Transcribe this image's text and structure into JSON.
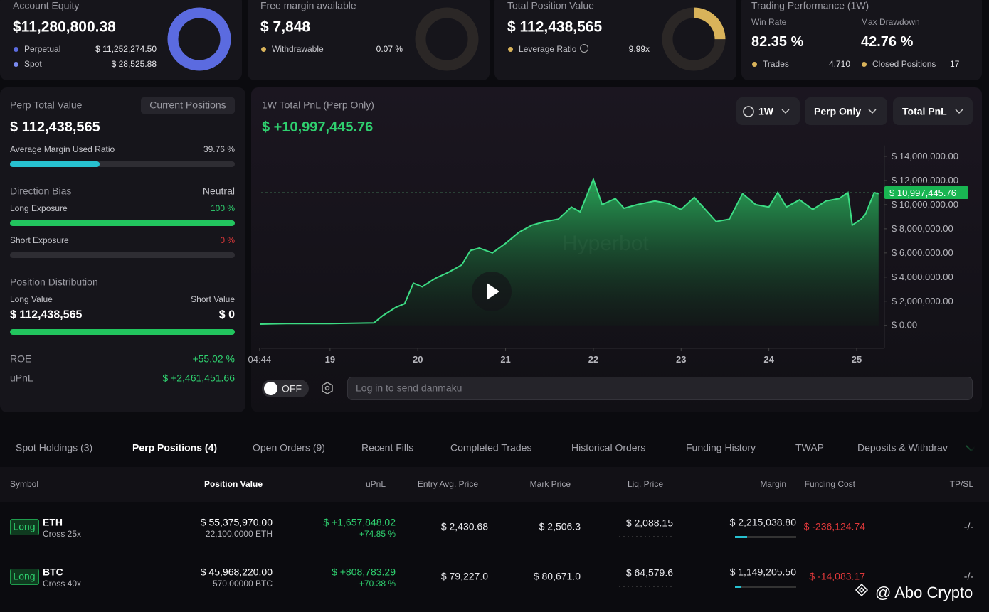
{
  "cards": [
    {
      "title": "Account Equity",
      "value": "$11,280,800.38",
      "gauge": 100,
      "color": "#5b6be0",
      "rows": [
        {
          "label": "Perpetual",
          "value": "$ 11,252,274.50"
        },
        {
          "label": "Spot",
          "value": "$ 28,525.88"
        }
      ]
    },
    {
      "title": "Free margin available",
      "value": "$ 7,848",
      "gauge": 0,
      "color": "#d9b35a",
      "rows": [
        {
          "label": "Withdrawable",
          "value": "0.07 %"
        }
      ]
    },
    {
      "title": "Total Position Value",
      "value": "$ 112,438,565",
      "gauge": 25,
      "color": "#d9b35a",
      "rows": [
        {
          "label": "Leverage Ratio",
          "value": "9.99x"
        }
      ]
    }
  ],
  "performance": {
    "title": "Trading Performance (1W)",
    "win_rate_label": "Win Rate",
    "win_rate": "82.35 %",
    "max_drawdown_label": "Max Drawdown",
    "max_drawdown": "42.76 %",
    "trades_label": "Trades",
    "trades": "4,710",
    "closed_label": "Closed Positions",
    "closed": "17"
  },
  "perp": {
    "title": "Perp Total Value",
    "button": "Current Positions",
    "value": "$ 112,438,565",
    "margin_ratio_label": "Average Margin Used Ratio",
    "margin_ratio": {
      "value": 39.76,
      "label": "39.76 %"
    },
    "bias_label": "Direction Bias",
    "bias": "Neutral",
    "long_label": "Long Exposure",
    "long": {
      "value": 100,
      "label": "100 %"
    },
    "short_label": "Short Exposure",
    "short": {
      "value": 0,
      "label": "0 %"
    },
    "distribution_label": "Position Distribution",
    "long_value_label": "Long Value",
    "short_value_label": "Short Value",
    "long_value": "$ 112,438,565",
    "short_value": "$ 0",
    "roe_label": "ROE",
    "roe": "+55.02 %",
    "upnl_label": "uPnL",
    "upnl": "$ +2,461,451.66"
  },
  "pnl_chart": {
    "type": "area",
    "title": "1W Total PnL (Perp Only)",
    "total": "$ +10,997,445.76",
    "controls": [
      "1W",
      "Perp Only",
      "Total PnL"
    ],
    "watermark": "Hyperbot",
    "color": "#3ddc84",
    "x": [
      18.2,
      18.5,
      19.0,
      19.5,
      19.6,
      19.75,
      19.85,
      19.95,
      20.05,
      20.2,
      20.35,
      20.5,
      20.6,
      20.7,
      20.85,
      21.0,
      21.15,
      21.3,
      21.45,
      21.6,
      21.75,
      21.85,
      22.0,
      22.1,
      22.25,
      22.35,
      22.5,
      22.7,
      22.85,
      23.0,
      23.15,
      23.3,
      23.4,
      23.55,
      23.7,
      23.85,
      24.0,
      24.1,
      24.2,
      24.35,
      24.5,
      24.65,
      24.8,
      24.9,
      24.95,
      25.05,
      25.1,
      25.2,
      25.25
    ],
    "values": [
      100000,
      150000,
      150000,
      200000,
      800000,
      1500000,
      1800000,
      3500000,
      3200000,
      3900000,
      4400000,
      5000000,
      6200000,
      6400000,
      6000000,
      6800000,
      7700000,
      8300000,
      8600000,
      8800000,
      9800000,
      9400000,
      12100000,
      10000000,
      10500000,
      9700000,
      10000000,
      10300000,
      10100000,
      9600000,
      10600000,
      9400000,
      8600000,
      8800000,
      10900000,
      10000000,
      9800000,
      11000000,
      9800000,
      10400000,
      9600000,
      10300000,
      10500000,
      11000000,
      8300000,
      8800000,
      9200000,
      11000000,
      10900000
    ],
    "current": {
      "value": 10997445.76,
      "label": "$ 10,997,445.76"
    },
    "xlim": [
      18.15,
      25.3
    ],
    "ylim": [
      -1900000,
      14900000
    ],
    "xticks": [
      {
        "value": 18.197,
        "label": "04:44"
      },
      19,
      20,
      21,
      22,
      23,
      24,
      25
    ],
    "yticks": [
      {
        "value": 0,
        "label": "$ 0.00"
      },
      {
        "value": 2000000,
        "label": "$ 2,000,000.00"
      },
      {
        "value": 4000000,
        "label": "$ 4,000,000.00"
      },
      {
        "value": 6000000,
        "label": "$ 6,000,000.00"
      },
      {
        "value": 8000000,
        "label": "$ 8,000,000.00"
      },
      {
        "value": 10000000,
        "label": "$ 10,000,000.00"
      },
      {
        "value": 12000000,
        "label": "$ 12,000,000.00"
      },
      {
        "value": 14000000,
        "label": "$ 14,000,000.00"
      }
    ],
    "grid": false
  },
  "danmaku": {
    "toggle": "OFF",
    "placeholder": "Log in to send danmaku"
  },
  "positions": {
    "tabs": [
      "Spot Holdings (3)",
      "Perp Positions (4)",
      "Open Orders (9)",
      "Recent Fills",
      "Completed Trades",
      "Historical Orders",
      "Funding History",
      "TWAP",
      "Deposits & Withdrav"
    ],
    "columns": [
      "Symbol",
      "Position Value",
      "uPnL",
      "Entry Avg. Price",
      "Mark Price",
      "Liq. Price",
      "Margin",
      "Funding Cost",
      "TP/SL"
    ],
    "rows": [
      {
        "side": "Long",
        "symbol": "ETH",
        "margin_mode": "Cross 25x",
        "position_value": "$ 55,375,970.00",
        "size": "22,100.0000 ETH",
        "upnl": "$ +1,657,848.02",
        "upnl_pct": "+74.85 %",
        "entry": "$ 2,430.68",
        "mark": "$ 2,506.3",
        "liq": "$ 2,088.15",
        "margin": "$ 2,215,038.80",
        "funding": "$ -236,124.74",
        "tpsl": "-/-"
      },
      {
        "side": "Long",
        "symbol": "BTC",
        "margin_mode": "Cross 40x",
        "position_value": "$ 45,968,220.00",
        "size": "570.00000 BTC",
        "upnl": "$ +808,783.29",
        "upnl_pct": "+70.38 %",
        "entry": "$ 79,227.0",
        "mark": "$ 80,671.0",
        "liq": "$ 64,579.6",
        "margin": "$ 1,149,205.50",
        "funding": "$ -14,083.17",
        "tpsl": "-/-"
      }
    ]
  },
  "watermark": "@ Abo Crypto"
}
